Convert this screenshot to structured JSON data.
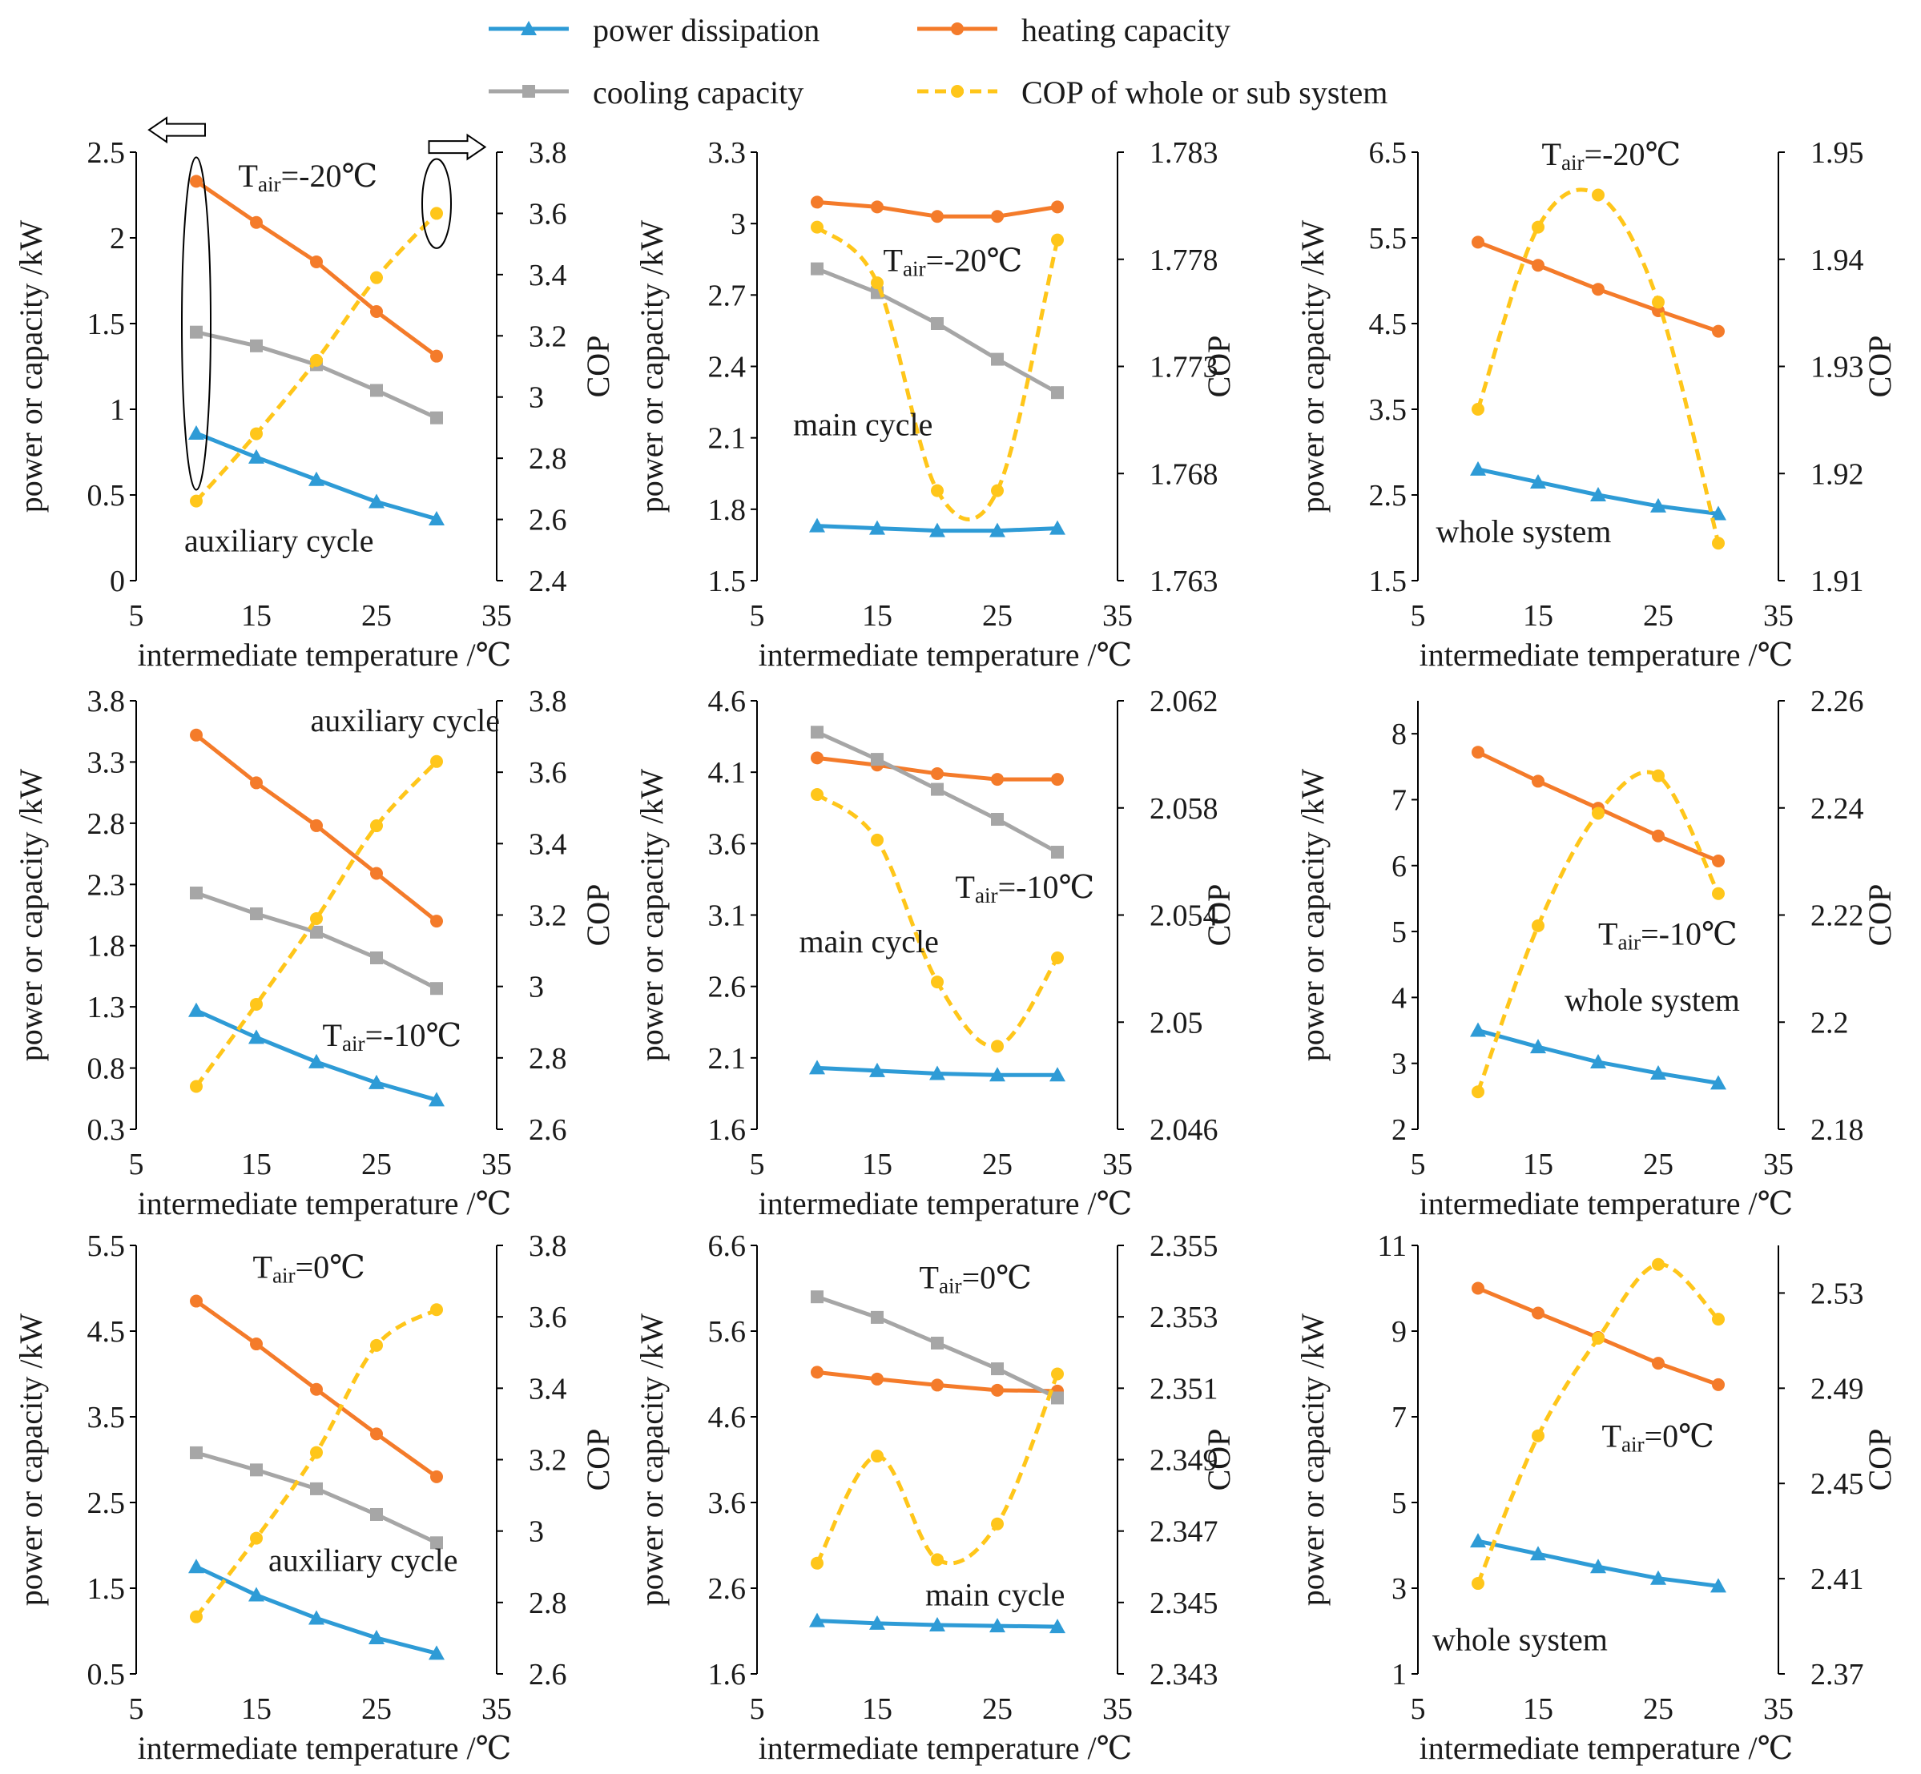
{
  "legend": {
    "items": [
      {
        "key": "power",
        "label": "power dissipation",
        "color": "#2E9BD6",
        "marker": "triangle",
        "dashed": false
      },
      {
        "key": "heating",
        "label": "heating capacity",
        "color": "#F47B2A",
        "marker": "circle",
        "dashed": false
      },
      {
        "key": "cooling",
        "label": "cooling capacity",
        "color": "#A6A6A6",
        "marker": "square",
        "dashed": false
      },
      {
        "key": "cop",
        "label": "COP of whole or sub system",
        "color": "#FFC61A",
        "marker": "circle",
        "dashed": true
      }
    ]
  },
  "chart_data": [
    {
      "type": "line",
      "id": "aux-m20",
      "xlabel": "intermediate temperature /℃",
      "ylabel": "power or capacity /kW",
      "y2label": "COP",
      "x_ticks": [
        "5",
        "15",
        "25",
        "35"
      ],
      "xlim": [
        5,
        35
      ],
      "ylim": [
        0,
        2.5
      ],
      "y_ticks": [
        "0",
        "0.5",
        "1",
        "1.5",
        "2",
        "2.5"
      ],
      "y2lim": [
        2.4,
        3.8
      ],
      "y2_ticks": [
        "2.4",
        "2.6",
        "2.8",
        "3",
        "3.2",
        "3.4",
        "3.6",
        "3.8"
      ],
      "x": [
        10,
        15,
        20,
        25,
        30
      ],
      "series": [
        {
          "name": "power dissipation",
          "values": [
            0.86,
            0.72,
            0.59,
            0.46,
            0.36
          ]
        },
        {
          "name": "heating capacity",
          "values": [
            2.33,
            2.09,
            1.86,
            1.57,
            1.31
          ]
        },
        {
          "name": "cooling capacity",
          "values": [
            1.45,
            1.37,
            1.26,
            1.11,
            0.95
          ]
        },
        {
          "name": "COP of whole or sub system",
          "axis": "y2",
          "values": [
            2.66,
            2.88,
            3.12,
            3.39,
            3.6
          ]
        }
      ],
      "annotations": [
        {
          "text": "auxiliary cycle",
          "x": 9,
          "y": 0.17,
          "size": 40
        },
        {
          "text_main": "T",
          "text_sub": "air",
          "text_rest": "=-20℃",
          "x": 13.5,
          "y": 2.3,
          "size": 40
        }
      ],
      "marks": {
        "ellipses": [
          {
            "cx": 10,
            "cy": 1.5,
            "rx": 1.2,
            "ry": 0.97
          },
          {
            "cx": 30,
            "cy": 2.2,
            "rx": 1.2,
            "ry": 0.26
          }
        ],
        "arrows": [
          {
            "x": 8.4,
            "y": 2.63,
            "dir": "left"
          },
          {
            "x": 31.7,
            "y": 2.53,
            "dir": "right"
          }
        ]
      }
    },
    {
      "type": "line",
      "id": "main-m20",
      "xlabel": "intermediate temperature /℃",
      "ylabel": "power or capacity /kW",
      "y2label": "COP",
      "x_ticks": [
        "5",
        "15",
        "25",
        "35"
      ],
      "xlim": [
        5,
        35
      ],
      "ylim": [
        1.5,
        3.3
      ],
      "y_ticks": [
        "1.5",
        "1.8",
        "2.1",
        "2.4",
        "2.7",
        "3",
        "3.3"
      ],
      "y2lim": [
        1.763,
        1.783
      ],
      "y2_ticks": [
        "1.763",
        "1.768",
        "1.773",
        "1.778",
        "1.783"
      ],
      "x": [
        10,
        15,
        20,
        25,
        30
      ],
      "series": [
        {
          "name": "power dissipation",
          "values": [
            1.73,
            1.72,
            1.71,
            1.71,
            1.72
          ]
        },
        {
          "name": "heating capacity",
          "values": [
            3.09,
            3.07,
            3.03,
            3.03,
            3.07
          ]
        },
        {
          "name": "cooling capacity",
          "values": [
            2.81,
            2.71,
            2.58,
            2.43,
            2.29
          ]
        },
        {
          "name": "COP of whole or sub system",
          "axis": "y2",
          "values": [
            1.7795,
            1.7769,
            1.7672,
            1.7672,
            1.7789
          ]
        }
      ],
      "annotations": [
        {
          "text": "main cycle",
          "x": 8,
          "y": 2.11,
          "size": 40
        },
        {
          "text_main": "T",
          "text_sub": "air",
          "text_rest": "=-20℃",
          "x": 15.5,
          "y": 2.8,
          "size": 40
        }
      ]
    },
    {
      "type": "line",
      "id": "whole-m20",
      "xlabel": "intermediate temperature /℃",
      "ylabel": "power or capacity /kW",
      "y2label": "COP",
      "x_ticks": [
        "5",
        "15",
        "25",
        "35"
      ],
      "xlim": [
        5,
        35
      ],
      "ylim": [
        1.5,
        6.5
      ],
      "y_ticks": [
        "1.5",
        "2.5",
        "3.5",
        "4.5",
        "5.5",
        "6.5"
      ],
      "y2lim": [
        1.91,
        1.95
      ],
      "y2_ticks": [
        "1.91",
        "1.92",
        "1.93",
        "1.94",
        "1.95"
      ],
      "x": [
        10,
        15,
        20,
        25,
        30
      ],
      "series": [
        {
          "name": "power dissipation",
          "values": [
            2.8,
            2.65,
            2.5,
            2.37,
            2.28
          ]
        },
        {
          "name": "heating capacity",
          "values": [
            5.45,
            5.18,
            4.9,
            4.65,
            4.41
          ]
        },
        {
          "name": "COP of whole or sub system",
          "axis": "y2",
          "values": [
            1.926,
            1.943,
            1.946,
            1.936,
            1.9135
          ]
        }
      ],
      "annotations": [
        {
          "text": "whole system",
          "x": 6.5,
          "y": 1.95,
          "size": 40
        },
        {
          "text_main": "T",
          "text_sub": "air",
          "text_rest": "=-20℃",
          "x": 15.3,
          "y": 6.35,
          "size": 40
        }
      ]
    },
    {
      "type": "line",
      "id": "aux-m10",
      "xlabel": "intermediate temperature /℃",
      "ylabel": "power or capacity /kW",
      "y2label": "COP",
      "x_ticks": [
        "5",
        "15",
        "25",
        "35"
      ],
      "xlim": [
        5,
        35
      ],
      "ylim": [
        0.3,
        3.8
      ],
      "y_ticks": [
        "0.3",
        "0.8",
        "1.3",
        "1.8",
        "2.3",
        "2.8",
        "3.3",
        "3.8"
      ],
      "y2lim": [
        2.6,
        3.8
      ],
      "y2_ticks": [
        "2.6",
        "2.8",
        "3",
        "3.2",
        "3.4",
        "3.6",
        "3.8"
      ],
      "x": [
        10,
        15,
        20,
        25,
        30
      ],
      "series": [
        {
          "name": "power dissipation",
          "values": [
            1.27,
            1.05,
            0.85,
            0.68,
            0.54
          ]
        },
        {
          "name": "heating capacity",
          "values": [
            3.52,
            3.13,
            2.78,
            2.39,
            2.0
          ]
        },
        {
          "name": "cooling capacity",
          "values": [
            2.23,
            2.06,
            1.91,
            1.7,
            1.45
          ]
        },
        {
          "name": "COP of whole or sub system",
          "axis": "y2",
          "values": [
            2.72,
            2.95,
            3.19,
            3.45,
            3.63
          ]
        }
      ],
      "annotations": [
        {
          "text": "auxiliary cycle",
          "x": 19.5,
          "y": 3.55,
          "size": 40
        },
        {
          "text_main": "T",
          "text_sub": "air",
          "text_rest": "=-10℃",
          "x": 20.5,
          "y": 0.98,
          "size": 40
        }
      ]
    },
    {
      "type": "line",
      "id": "main-m10",
      "xlabel": "intermediate temperature /℃",
      "ylabel": "power or capacity /kW",
      "y2label": "COP",
      "x_ticks": [
        "5",
        "15",
        "25",
        "35"
      ],
      "xlim": [
        5,
        35
      ],
      "ylim": [
        1.6,
        4.6
      ],
      "y_ticks": [
        "1.6",
        "2.1",
        "2.6",
        "3.1",
        "3.6",
        "4.1",
        "4.6"
      ],
      "y2lim": [
        2.046,
        2.062
      ],
      "y2_ticks": [
        "2.046",
        "2.05",
        "2.054",
        "2.058",
        "2.062"
      ],
      "x": [
        10,
        15,
        20,
        25,
        30
      ],
      "series": [
        {
          "name": "power dissipation",
          "values": [
            2.03,
            2.01,
            1.99,
            1.98,
            1.98
          ]
        },
        {
          "name": "heating capacity",
          "values": [
            4.2,
            4.15,
            4.09,
            4.05,
            4.05
          ]
        },
        {
          "name": "cooling capacity",
          "values": [
            4.38,
            4.19,
            3.98,
            3.77,
            3.54
          ]
        },
        {
          "name": "COP of whole or sub system",
          "axis": "y2",
          "values": [
            2.0585,
            2.0568,
            2.0515,
            2.0491,
            2.0524
          ]
        }
      ],
      "annotations": [
        {
          "text": "main cycle",
          "x": 8.5,
          "y": 2.84,
          "size": 40
        },
        {
          "text_main": "T",
          "text_sub": "air",
          "text_rest": "=-10℃",
          "x": 21.5,
          "y": 3.22,
          "size": 40
        }
      ]
    },
    {
      "type": "line",
      "id": "whole-m10",
      "xlabel": "intermediate temperature /℃",
      "ylabel": "power or capacity /kW",
      "y2label": "COP",
      "x_ticks": [
        "5",
        "15",
        "25",
        "35"
      ],
      "xlim": [
        5,
        35
      ],
      "ylim": [
        2,
        8.5
      ],
      "y_ticks": [
        "2",
        "3",
        "4",
        "5",
        "6",
        "7",
        "8"
      ],
      "y2lim": [
        2.18,
        2.26
      ],
      "y2_ticks": [
        "2.18",
        "2.2",
        "2.22",
        "2.24",
        "2.26"
      ],
      "x": [
        10,
        15,
        20,
        25,
        30
      ],
      "series": [
        {
          "name": "power dissipation",
          "values": [
            3.5,
            3.25,
            3.02,
            2.85,
            2.7
          ]
        },
        {
          "name": "heating capacity",
          "values": [
            7.72,
            7.28,
            6.87,
            6.45,
            6.07
          ]
        },
        {
          "name": "COP of whole or sub system",
          "axis": "y2",
          "values": [
            2.187,
            2.218,
            2.239,
            2.246,
            2.224
          ]
        }
      ],
      "annotations": [
        {
          "text": "whole system",
          "x": 17.2,
          "y": 3.8,
          "size": 40
        },
        {
          "text_main": "T",
          "text_sub": "air",
          "text_rest": "=-10℃",
          "x": 20,
          "y": 4.8,
          "size": 40
        }
      ]
    },
    {
      "type": "line",
      "id": "aux-0",
      "xlabel": "intermediate temperature /℃",
      "ylabel": "power or capacity /kW",
      "y2label": "COP",
      "x_ticks": [
        "5",
        "15",
        "25",
        "35"
      ],
      "xlim": [
        5,
        35
      ],
      "ylim": [
        0.5,
        5.5
      ],
      "y_ticks": [
        "0.5",
        "1.5",
        "2.5",
        "3.5",
        "4.5",
        "5.5"
      ],
      "y2lim": [
        2.6,
        3.8
      ],
      "y2_ticks": [
        "2.6",
        "2.8",
        "3",
        "3.2",
        "3.4",
        "3.6",
        "3.8"
      ],
      "x": [
        10,
        15,
        20,
        25,
        30
      ],
      "series": [
        {
          "name": "power dissipation",
          "values": [
            1.75,
            1.42,
            1.15,
            0.92,
            0.74
          ]
        },
        {
          "name": "heating capacity",
          "values": [
            4.85,
            4.35,
            3.82,
            3.3,
            2.8
          ]
        },
        {
          "name": "cooling capacity",
          "values": [
            3.08,
            2.88,
            2.66,
            2.36,
            2.03
          ]
        },
        {
          "name": "COP of whole or sub system",
          "axis": "y2",
          "values": [
            2.76,
            2.98,
            3.22,
            3.52,
            3.62
          ]
        }
      ],
      "annotations": [
        {
          "text": "auxiliary cycle",
          "x": 16,
          "y": 1.7,
          "size": 40
        },
        {
          "text_main": "T",
          "text_sub": "air",
          "text_rest": "=0℃",
          "x": 14.7,
          "y": 5.12,
          "size": 40
        }
      ]
    },
    {
      "type": "line",
      "id": "main-0",
      "xlabel": "intermediate temperature /℃",
      "ylabel": "power or capacity /kW",
      "y2label": "COP",
      "x_ticks": [
        "5",
        "15",
        "25",
        "35"
      ],
      "xlim": [
        5,
        35
      ],
      "ylim": [
        1.6,
        6.6
      ],
      "y_ticks": [
        "1.6",
        "2.6",
        "3.6",
        "4.6",
        "5.6",
        "6.6"
      ],
      "y2lim": [
        2.343,
        2.355
      ],
      "y2_ticks": [
        "2.343",
        "2.345",
        "2.347",
        "2.349",
        "2.351",
        "2.353",
        "2.355"
      ],
      "x": [
        10,
        15,
        20,
        25,
        30
      ],
      "series": [
        {
          "name": "power dissipation",
          "values": [
            2.22,
            2.19,
            2.17,
            2.16,
            2.15
          ]
        },
        {
          "name": "heating capacity",
          "values": [
            5.12,
            5.04,
            4.97,
            4.91,
            4.9
          ]
        },
        {
          "name": "cooling capacity",
          "values": [
            6.0,
            5.76,
            5.46,
            5.16,
            4.82
          ]
        },
        {
          "name": "COP of whole or sub system",
          "axis": "y2",
          "values": [
            2.3461,
            2.3491,
            2.3462,
            2.3472,
            2.3514
          ]
        }
      ],
      "annotations": [
        {
          "text": "main cycle",
          "x": 19,
          "y": 2.4,
          "size": 40
        },
        {
          "text_main": "T",
          "text_sub": "air",
          "text_rest": "=0℃",
          "x": 18.5,
          "y": 6.1,
          "size": 40
        }
      ]
    },
    {
      "type": "line",
      "id": "whole-0",
      "xlabel": "intermediate temperature /℃",
      "ylabel": "power or capacity /kW",
      "y2label": "COP",
      "x_ticks": [
        "5",
        "15",
        "25",
        "35"
      ],
      "xlim": [
        5,
        35
      ],
      "ylim": [
        1,
        11
      ],
      "y_ticks": [
        "1",
        "3",
        "5",
        "7",
        "9",
        "11"
      ],
      "y2lim": [
        2.37,
        2.55
      ],
      "y2_ticks": [
        "2.37",
        "2.41",
        "2.45",
        "2.49",
        "2.53"
      ],
      "x": [
        10,
        15,
        20,
        25,
        30
      ],
      "series": [
        {
          "name": "power dissipation",
          "values": [
            4.1,
            3.8,
            3.5,
            3.23,
            3.05
          ]
        },
        {
          "name": "heating capacity",
          "values": [
            10.0,
            9.42,
            8.85,
            8.25,
            7.75
          ]
        },
        {
          "name": "COP of whole or sub system",
          "axis": "y2",
          "values": [
            2.408,
            2.47,
            2.511,
            2.542,
            2.519
          ]
        }
      ],
      "annotations": [
        {
          "text": "whole system",
          "x": 6.2,
          "y": 1.55,
          "size": 40
        },
        {
          "text_main": "T",
          "text_sub": "air",
          "text_rest": "=0℃",
          "x": 20.3,
          "y": 6.3,
          "size": 40
        }
      ]
    }
  ]
}
